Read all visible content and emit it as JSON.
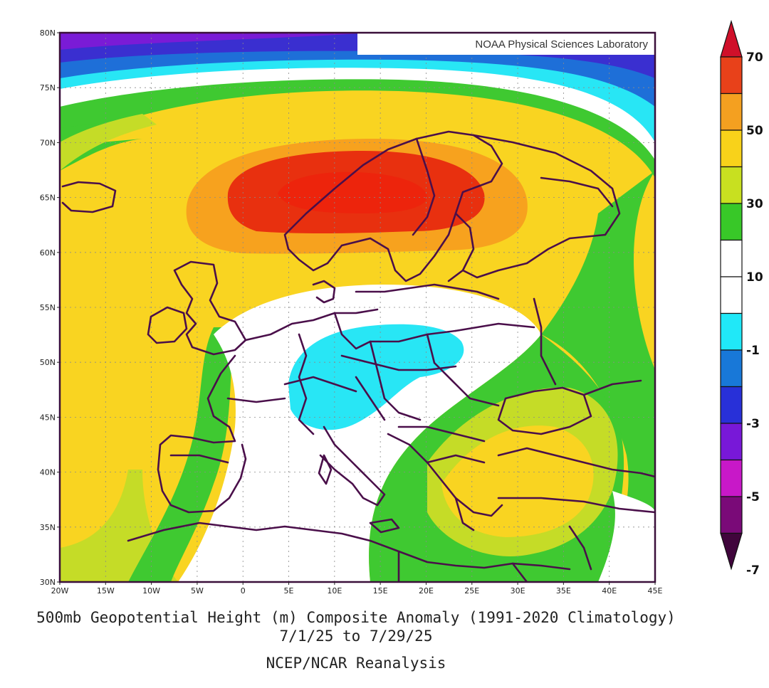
{
  "credit": "NOAA Physical Sciences Laboratory",
  "lat_ticks": [
    "80N",
    "75N",
    "70N",
    "65N",
    "60N",
    "55N",
    "50N",
    "45N",
    "40N",
    "35N",
    "30N"
  ],
  "lon_ticks": [
    "20W",
    "15W",
    "10W",
    "5W",
    "0",
    "5E",
    "10E",
    "15E",
    "20E",
    "25E",
    "30E",
    "35E",
    "40E",
    "45E"
  ],
  "legend": {
    "labels": [
      "70",
      "50",
      "30",
      "10",
      "-1",
      "-3",
      "-5",
      "-7"
    ],
    "colors": [
      "#D0102A",
      "#E8411A",
      "#F4A020",
      "#F8D21A",
      "#C8E020",
      "#38C828",
      "#FFFFFF",
      "#FFFFFF",
      "#20E8F8",
      "#1878D8",
      "#2830D8",
      "#7818D8",
      "#C818C8",
      "#7A0A78",
      "#40053C"
    ]
  },
  "captions": {
    "line1": "500mb Geopotential Height (m) Composite Anomaly (1991-2020 Climatology)",
    "line2": "7/1/25 to 7/29/25",
    "line3": "NCEP/NCAR Reanalysis"
  },
  "field_colors": {
    "red": "#E8300F",
    "orange": "#F7A21E",
    "yellow": "#F9D421",
    "yellowgreen": "#C5DC27",
    "green": "#3FC931",
    "white": "#FFFFFF",
    "cyan": "#28E6F5",
    "blue": "#1E6FD8",
    "indigo": "#3A2FD0",
    "purple": "#7A1BD6"
  }
}
